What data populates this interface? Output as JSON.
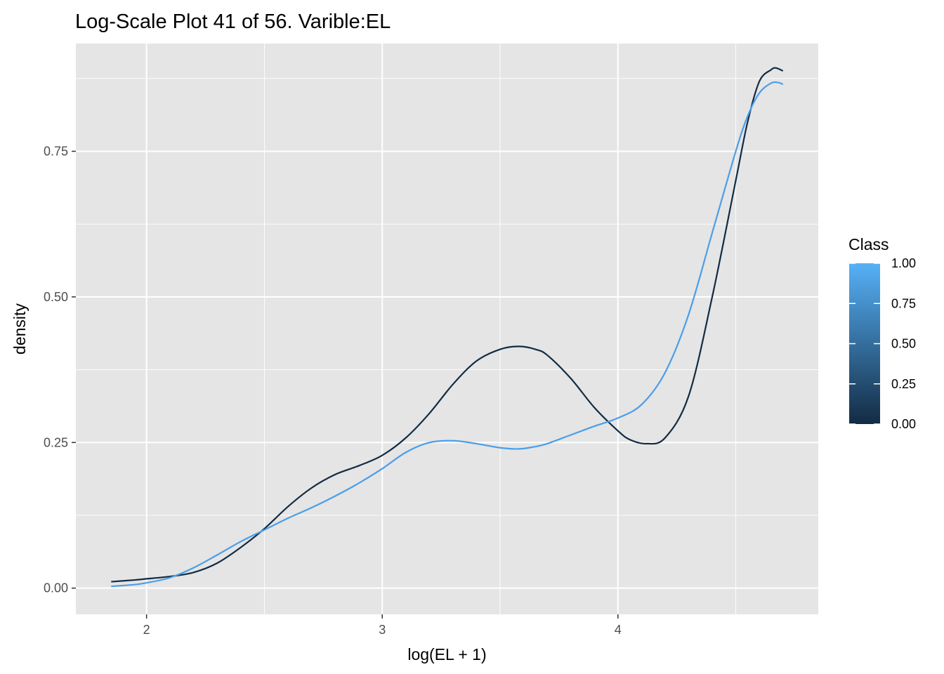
{
  "chart_data": {
    "type": "line",
    "title": "Log-Scale Plot 41 of 56. Varible:EL",
    "xlabel": "log(EL + 1)",
    "ylabel": "density",
    "xlim": [
      1.7,
      4.85
    ],
    "ylim": [
      -0.045,
      0.935
    ],
    "x_ticks": [
      2,
      3,
      4
    ],
    "x_tick_labels": [
      "2",
      "3",
      "4"
    ],
    "x_minor_ticks": [
      2.5,
      3.5,
      4.5
    ],
    "y_ticks": [
      0,
      0.25,
      0.5,
      0.75
    ],
    "y_tick_labels": [
      "0.00",
      "0.25",
      "0.50",
      "0.75"
    ],
    "y_minor_ticks": [
      0.125,
      0.375,
      0.625,
      0.875
    ],
    "grid": true,
    "background": "#e5e5e5",
    "legend": {
      "title": "Class",
      "position": "right",
      "type": "colorbar",
      "low_color": "#132b43",
      "high_color": "#56b1f7",
      "breaks": [
        0,
        0.25,
        0.5,
        0.75,
        1
      ],
      "labels": [
        "0.00",
        "0.25",
        "0.50",
        "0.75",
        "1.00"
      ]
    },
    "series": [
      {
        "class_value": 0,
        "color": "#132b43",
        "x": [
          1.85,
          1.95,
          2.0,
          2.1,
          2.2,
          2.3,
          2.4,
          2.5,
          2.6,
          2.7,
          2.8,
          2.9,
          3.0,
          3.1,
          3.2,
          3.3,
          3.4,
          3.5,
          3.58,
          3.65,
          3.7,
          3.8,
          3.9,
          4.0,
          4.05,
          4.12,
          4.2,
          4.3,
          4.4,
          4.5,
          4.55,
          4.6,
          4.65,
          4.67,
          4.7
        ],
        "y": [
          0.011,
          0.014,
          0.016,
          0.02,
          0.027,
          0.043,
          0.07,
          0.102,
          0.14,
          0.172,
          0.195,
          0.21,
          0.228,
          0.258,
          0.3,
          0.35,
          0.39,
          0.41,
          0.415,
          0.41,
          0.4,
          0.36,
          0.31,
          0.27,
          0.255,
          0.248,
          0.258,
          0.33,
          0.5,
          0.7,
          0.8,
          0.87,
          0.89,
          0.893,
          0.888
        ]
      },
      {
        "class_value": 1,
        "color": "#4a9ee9",
        "x": [
          1.85,
          1.95,
          2.0,
          2.1,
          2.2,
          2.3,
          2.4,
          2.5,
          2.6,
          2.7,
          2.8,
          2.9,
          3.0,
          3.1,
          3.2,
          3.3,
          3.4,
          3.5,
          3.58,
          3.65,
          3.7,
          3.8,
          3.9,
          4.0,
          4.1,
          4.2,
          4.3,
          4.4,
          4.5,
          4.55,
          4.6,
          4.65,
          4.68,
          4.7
        ],
        "y": [
          0.003,
          0.006,
          0.009,
          0.018,
          0.035,
          0.057,
          0.08,
          0.1,
          0.12,
          0.138,
          0.158,
          0.18,
          0.205,
          0.233,
          0.25,
          0.253,
          0.248,
          0.241,
          0.239,
          0.243,
          0.248,
          0.263,
          0.278,
          0.292,
          0.315,
          0.37,
          0.47,
          0.61,
          0.75,
          0.81,
          0.85,
          0.867,
          0.868,
          0.865
        ]
      }
    ]
  }
}
